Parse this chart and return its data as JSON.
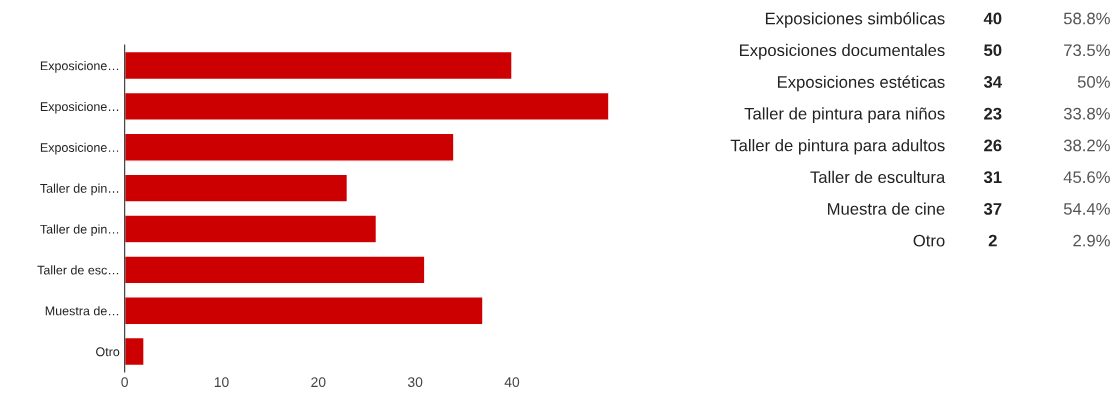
{
  "chart_data": [
    {
      "type": "bar",
      "orientation": "horizontal",
      "categories": [
        "Exposicione…",
        "Exposicione…",
        "Exposicione…",
        "Taller de pin…",
        "Taller de pin…",
        "Taller de esc…",
        "Muestra de…",
        "Otro"
      ],
      "values": [
        40,
        50,
        34,
        23,
        26,
        31,
        37,
        2
      ],
      "color": "#cc0000",
      "xlim": [
        0,
        50
      ],
      "xticks": [
        0,
        10,
        20,
        30,
        40
      ],
      "grid": false,
      "legend": false
    },
    {
      "type": "other",
      "categories": [
        "Exposiciones simbólicas",
        "Exposiciones documentales",
        "Exposiciones estéticas",
        "Taller de pintura para niños",
        "Taller de pintura para adultos",
        "Taller de escultura",
        "Muestra de cine",
        "Otro"
      ],
      "data_labels": true,
      "series": [
        {
          "values": [
            40,
            50,
            34,
            23,
            26,
            31,
            37,
            2
          ]
        },
        {
          "values": [
            58.8,
            73.5,
            50,
            33.8,
            38.2,
            45.6,
            54.4,
            2.9
          ],
          "value_labels": [
            "58.8%",
            "73.5%",
            "50%",
            "33.8%",
            "38.2%",
            "45.6%",
            "54.4%",
            "2.9%"
          ]
        }
      ]
    }
  ]
}
